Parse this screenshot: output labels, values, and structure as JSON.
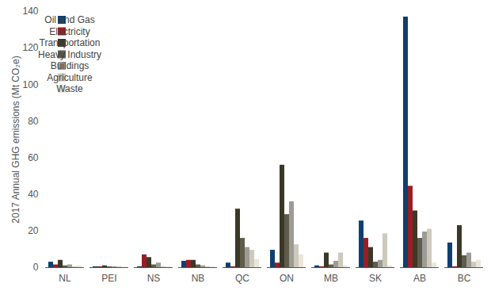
{
  "chart_data": {
    "type": "bar",
    "y_label": "2017 Annual GHG emissions (Mt CO₂e)",
    "categories": [
      "NL",
      "PEI",
      "NS",
      "NB",
      "QC",
      "ON",
      "MB",
      "SK",
      "AB",
      "BC"
    ],
    "series": [
      {
        "name": "Oil and Gas",
        "color": "#0f3f6e",
        "values": [
          3,
          0.5,
          0.5,
          3.5,
          2.5,
          9.5,
          1,
          25.5,
          137,
          13.5
        ]
      },
      {
        "name": "Electricity",
        "color": "#9a1d23",
        "values": [
          1.5,
          0.5,
          7,
          4,
          0.5,
          2.5,
          0.5,
          16,
          44.5,
          0.5
        ]
      },
      {
        "name": "Transportation",
        "color": "#3b3828",
        "values": [
          4,
          1,
          5.5,
          4,
          32,
          56,
          8,
          11,
          31,
          23
        ]
      },
      {
        "name": "Heavy Industry",
        "color": "#5f5c4b",
        "values": [
          1,
          0.5,
          1.5,
          1.5,
          16,
          29,
          1.5,
          3,
          16,
          6.5
        ]
      },
      {
        "name": "Buildings",
        "color": "#9c9b95",
        "values": [
          1.5,
          0.5,
          2.5,
          1,
          11,
          36,
          3.5,
          4,
          19.5,
          8
        ]
      },
      {
        "name": "Agriculture",
        "color": "#cdc9bc",
        "values": [
          0.5,
          0.5,
          0.5,
          0.5,
          9.5,
          12.5,
          8,
          18.5,
          21,
          3
        ]
      },
      {
        "name": "Waste",
        "color": "#e9e5da",
        "values": [
          1,
          0.3,
          0.5,
          0.5,
          4.5,
          7,
          1,
          1,
          2.5,
          4
        ]
      }
    ],
    "ylim": [
      0,
      140
    ],
    "yticks": [
      0,
      20,
      40,
      60,
      80,
      100,
      120,
      140
    ],
    "legend": "top-left",
    "grid": false
  }
}
